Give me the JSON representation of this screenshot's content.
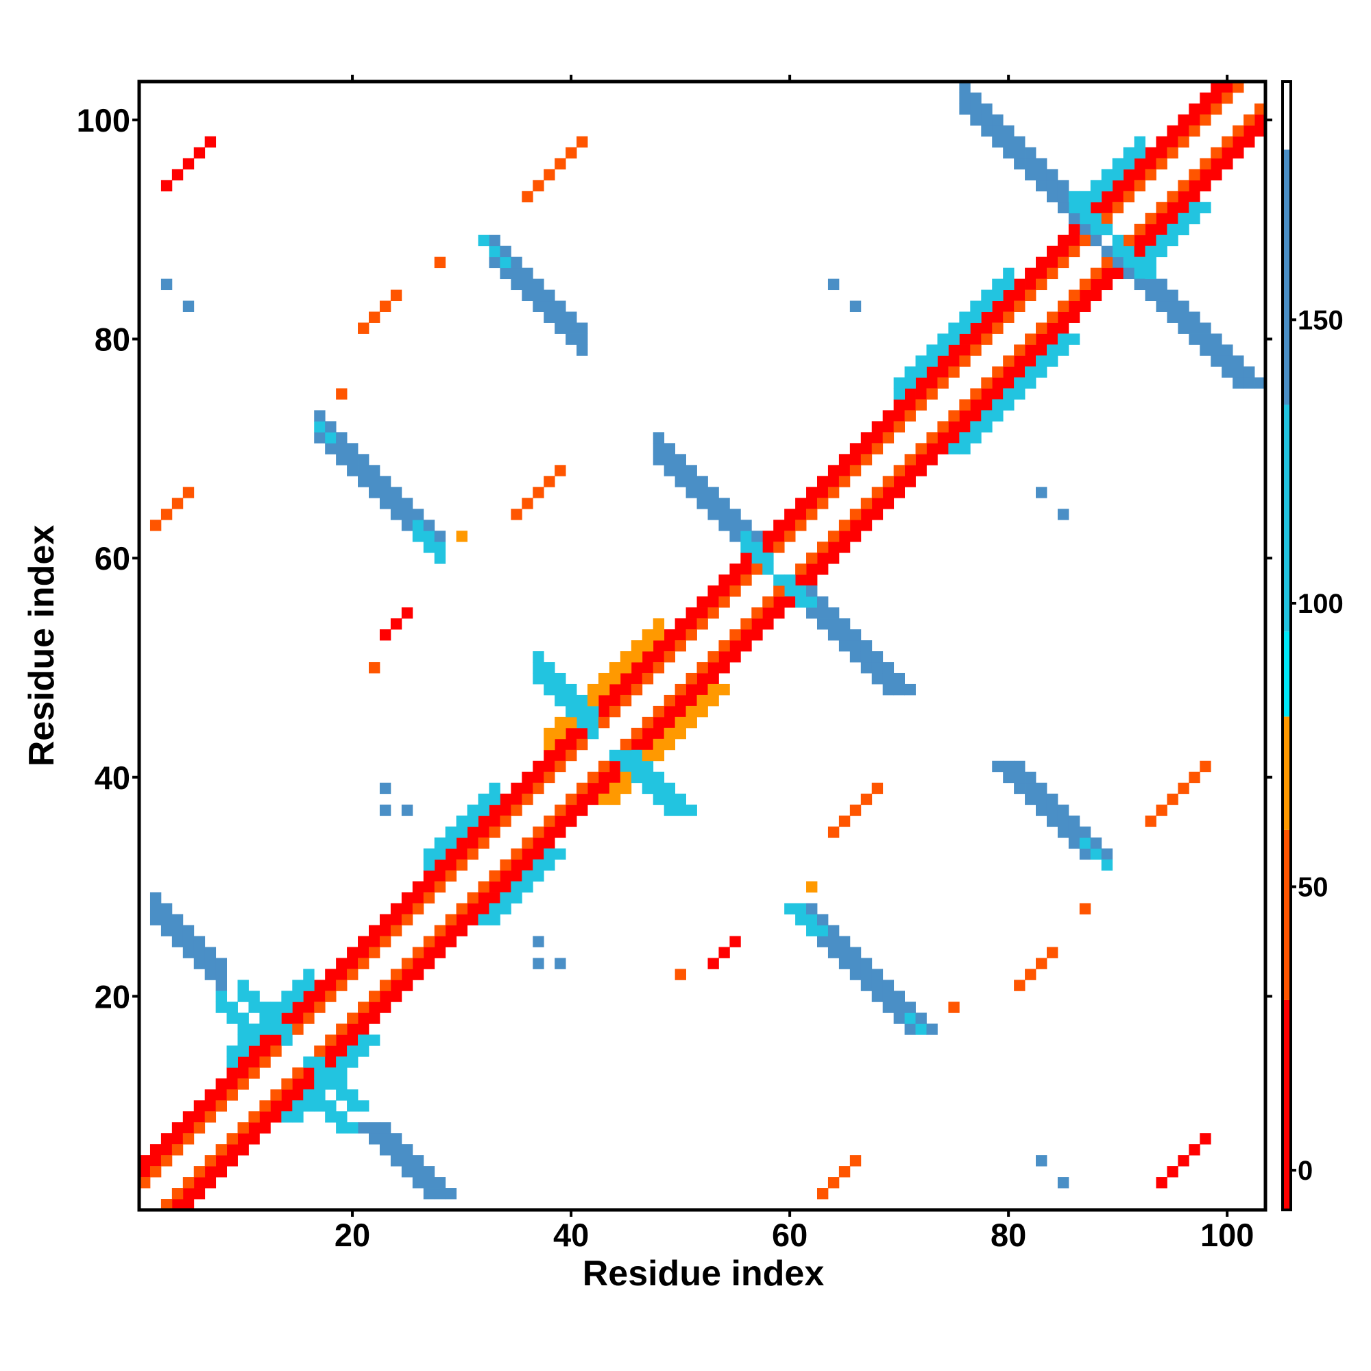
{
  "chart_data": {
    "type": "heatmap",
    "title": "",
    "xlabel": "Residue index",
    "ylabel": "Residue index",
    "n_residues": 103,
    "xlim": [
      0.5,
      103.5
    ],
    "ylim": [
      0.5,
      103.5
    ],
    "xticks": [
      20,
      40,
      60,
      80,
      100
    ],
    "yticks": [
      20,
      40,
      60,
      80,
      100
    ],
    "symmetric": true,
    "colorbar": {
      "range": [
        -7,
        192
      ],
      "ticks": [
        0,
        50,
        100,
        150
      ],
      "stops": [
        {
          "from": -7,
          "to": 30,
          "color": "#ff0000"
        },
        {
          "from": 30,
          "to": 60,
          "color": "#ff5500"
        },
        {
          "from": 60,
          "to": 80,
          "color": "#ff9900"
        },
        {
          "from": 80,
          "to": 95,
          "color": "#00e8f8"
        },
        {
          "from": 95,
          "to": 135,
          "color": "#22c4e0"
        },
        {
          "from": 135,
          "to": 180,
          "color": "#4a8fc6"
        },
        {
          "from": 180,
          "to": 192,
          "color": "#ffffff"
        }
      ]
    },
    "diagonal_segments": [
      {
        "i": [
          1,
          100
        ],
        "diff": 3,
        "width": 1,
        "value": 8
      },
      {
        "i": [
          1,
          99
        ],
        "diff": 4,
        "width": 1,
        "value": 12
      },
      {
        "i": [
          1,
          101
        ],
        "diff": 2,
        "width": 1,
        "value": 45
      },
      {
        "i": [
          9,
          16
        ],
        "diff": 5,
        "width": 2,
        "value": 105
      },
      {
        "i": [
          27,
          33
        ],
        "diff": 5,
        "width": 2,
        "value": 100
      },
      {
        "i": [
          38,
          48
        ],
        "diff": 5,
        "width": 2,
        "value": 60
      },
      {
        "i": [
          70,
          80
        ],
        "diff": 5,
        "width": 2,
        "value": 105
      },
      {
        "i": [
          86,
          92
        ],
        "diff": 5,
        "width": 2,
        "value": 100
      }
    ],
    "antiparallel_segments": [
      {
        "i": [
          2,
          8
        ],
        "sum": 29,
        "width": 3,
        "value": 160
      },
      {
        "i": [
          8,
          10
        ],
        "sum": 27,
        "width": 2,
        "value": 105
      },
      {
        "i": [
          10,
          14
        ],
        "sum": 30,
        "width": 2,
        "value": 105
      },
      {
        "i": [
          17,
          28
        ],
        "sum": 88,
        "width": 3,
        "value": 160
      },
      {
        "i": [
          17,
          18
        ],
        "sum": 89,
        "width": 1,
        "value": 100
      },
      {
        "i": [
          26,
          28
        ],
        "sum": 88,
        "width": 2,
        "value": 110
      },
      {
        "i": [
          33,
          41
        ],
        "sum": 120,
        "width": 3,
        "value": 160
      },
      {
        "i": [
          32,
          34
        ],
        "sum": 121,
        "width": 1,
        "value": 100
      },
      {
        "i": [
          37,
          42
        ],
        "sum": 86,
        "width": 3,
        "value": 110
      },
      {
        "i": [
          48,
          57
        ],
        "sum": 117,
        "width": 3,
        "value": 160
      },
      {
        "i": [
          56,
          60
        ],
        "sum": 117,
        "width": 2,
        "value": 105
      },
      {
        "i": [
          76,
          88
        ],
        "sum": 177,
        "width": 3,
        "value": 160
      },
      {
        "i": [
          86,
          90
        ],
        "sum": 178,
        "width": 2,
        "value": 105
      }
    ],
    "parallel_segments": [
      {
        "i": [
          3,
          7
        ],
        "diff": 91,
        "width": 1,
        "value": 10
      },
      {
        "i": [
          2,
          5
        ],
        "diff": 61,
        "width": 1,
        "value": 40
      },
      {
        "i": [
          36,
          41
        ],
        "diff": 57,
        "width": 1,
        "value": 45
      },
      {
        "i": [
          35,
          39
        ],
        "diff": 29,
        "width": 1,
        "value": 30
      },
      {
        "i": [
          21,
          24
        ],
        "diff": 60,
        "width": 1,
        "value": 35
      },
      {
        "i": [
          23,
          25
        ],
        "diff": 30,
        "width": 1,
        "value": 10
      }
    ],
    "single_cells": [
      [
        3,
        85,
        160
      ],
      [
        5,
        83,
        160
      ],
      [
        64,
        85,
        150
      ],
      [
        66,
        83,
        160
      ],
      [
        23,
        39,
        140
      ],
      [
        23,
        37,
        140
      ],
      [
        25,
        37,
        150
      ],
      [
        19,
        75,
        50
      ],
      [
        22,
        50,
        45
      ],
      [
        28,
        87,
        45
      ],
      [
        30,
        62,
        70
      ]
    ]
  },
  "colors": {
    "axis": "#000000",
    "background": "#ffffff"
  }
}
